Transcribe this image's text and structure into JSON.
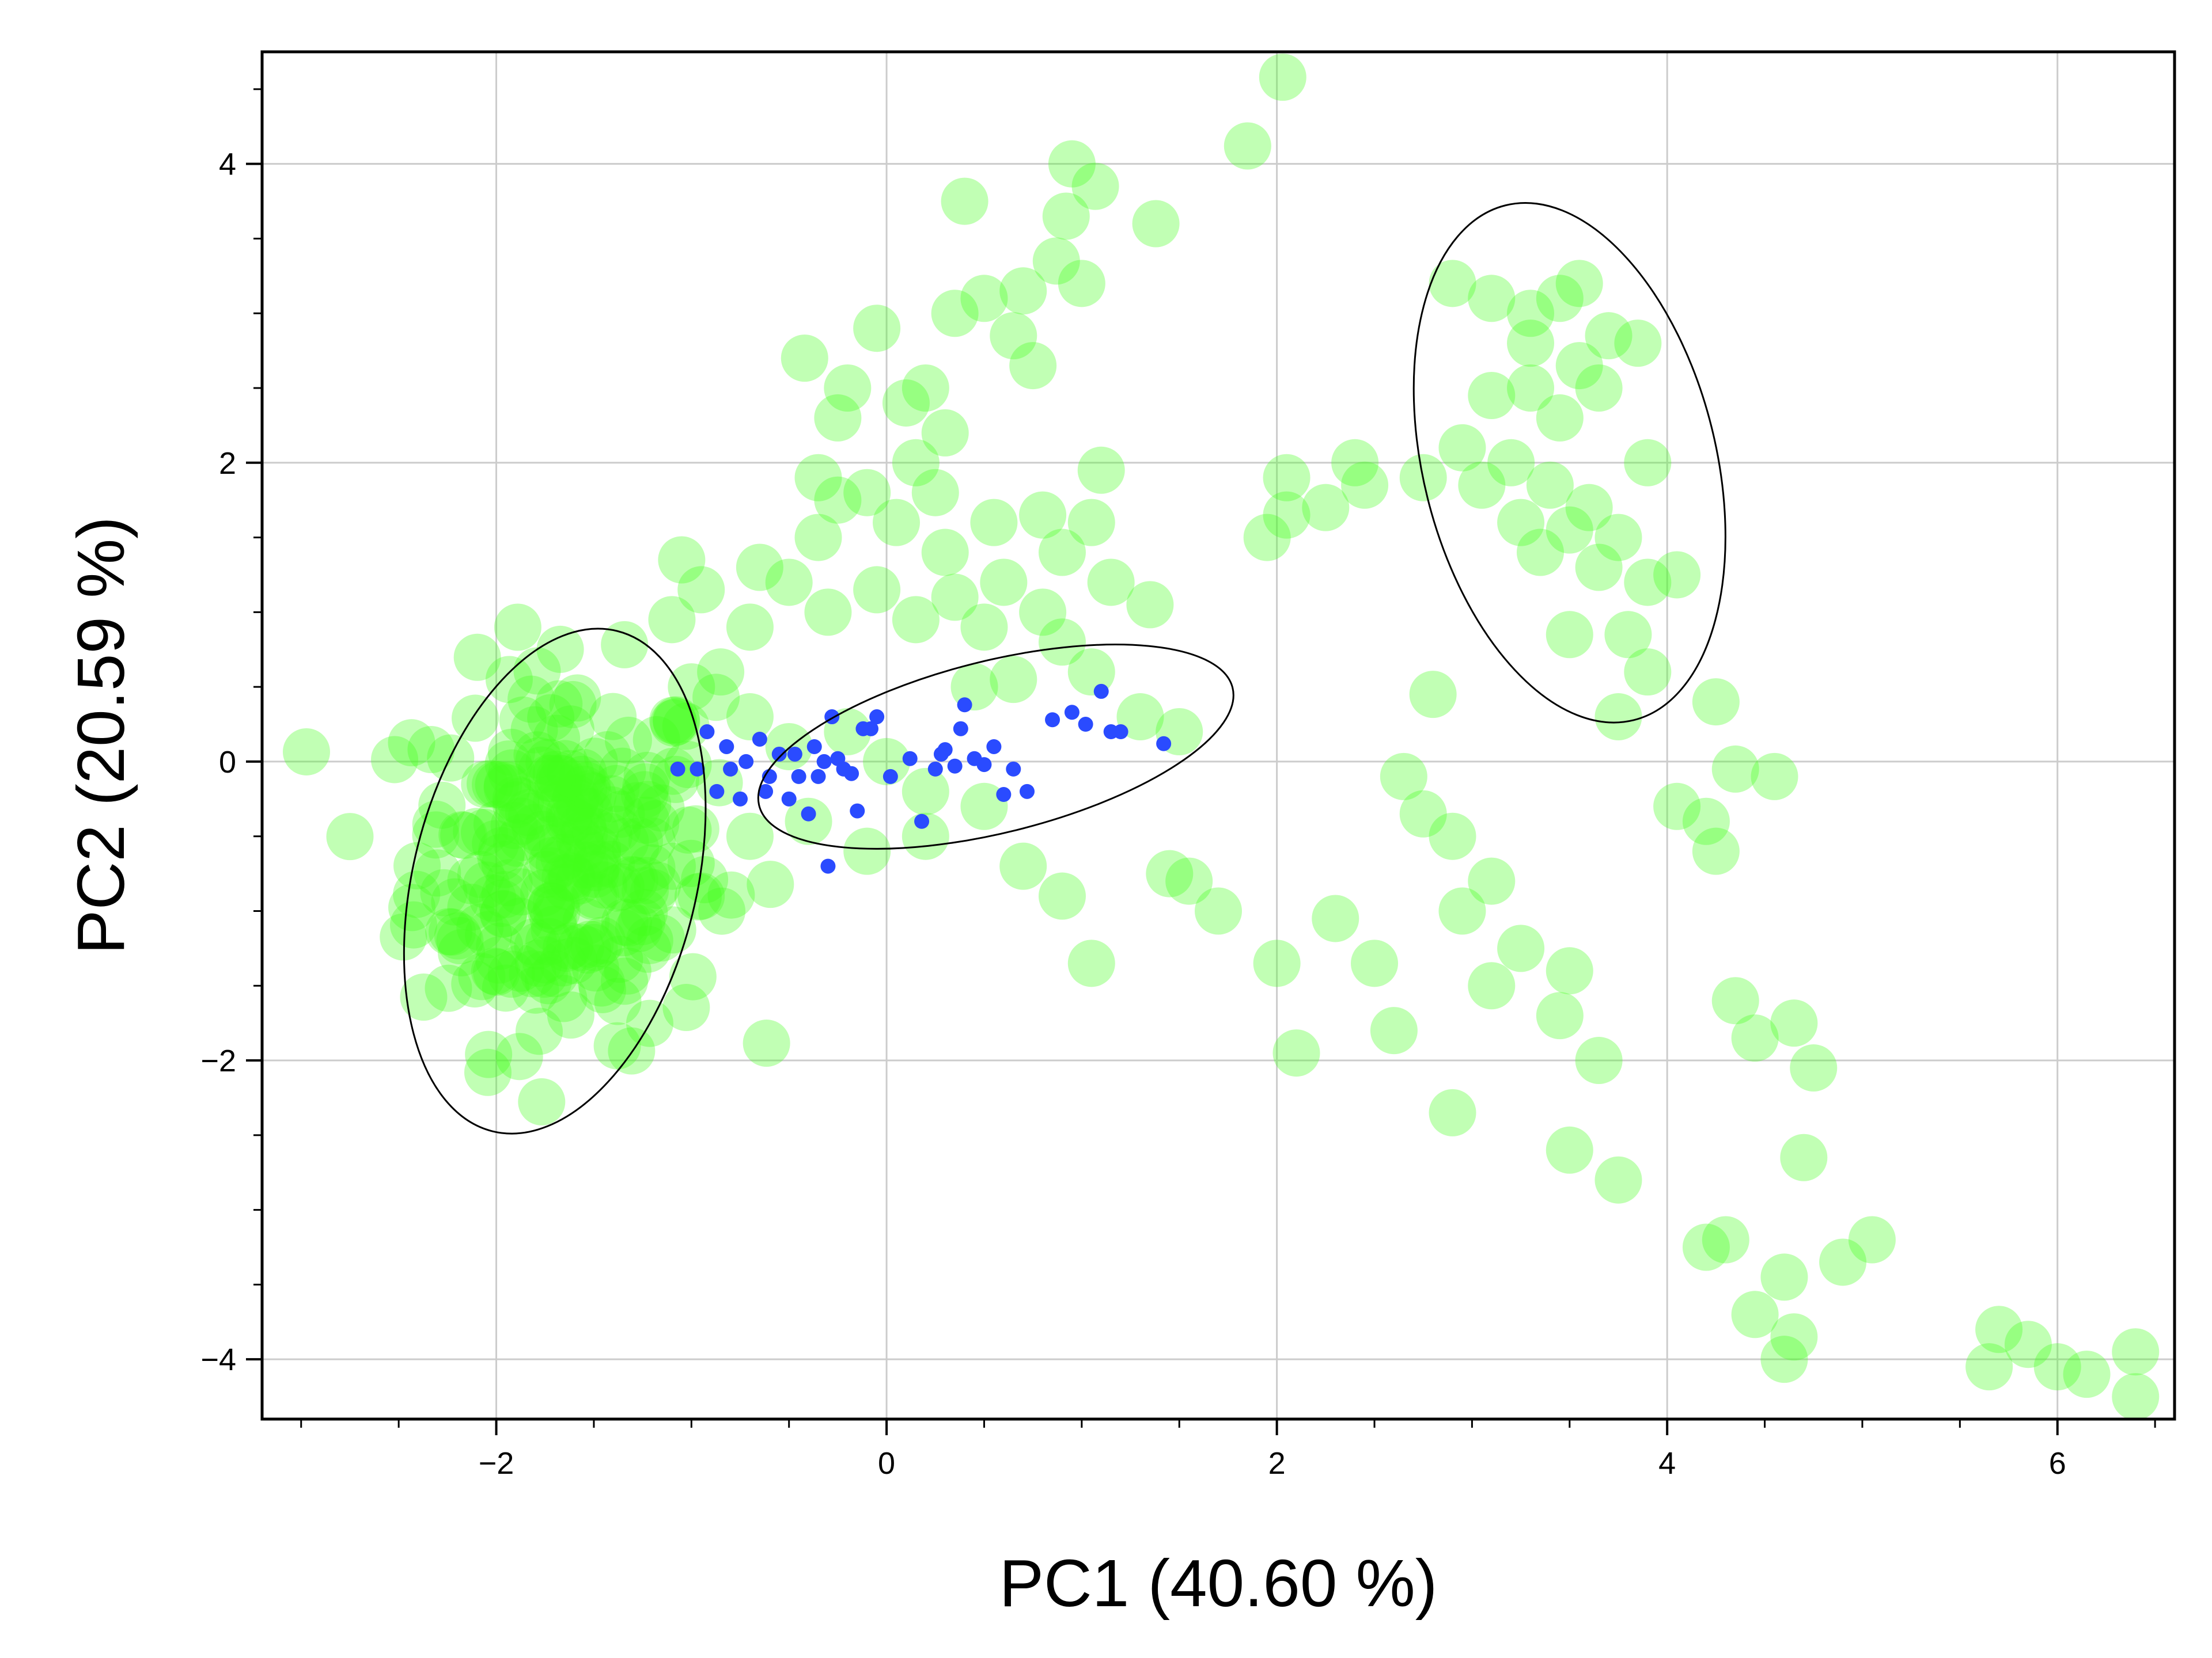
{
  "chart_data": {
    "type": "scatter",
    "title": "",
    "xlabel": "PC1 (40.60 %)",
    "ylabel": "PC2 (20.59 %)",
    "xlim": [
      -3.2,
      6.6
    ],
    "ylim": [
      -4.4,
      4.75
    ],
    "xticks": [
      -2,
      0,
      2,
      4,
      6
    ],
    "yticks": [
      -4,
      -2,
      0,
      2,
      4
    ],
    "tick_labels_x": [
      "−2",
      "0",
      "2",
      "4",
      "6"
    ],
    "tick_labels_y": [
      "−4",
      "−2",
      "0",
      "2",
      "4"
    ],
    "grid": true,
    "legend": "none",
    "colors": {
      "green": "#44ff1a",
      "blue": "#2a4bff",
      "grid": "#cccccc",
      "ellipse": "#000000"
    },
    "series": [
      {
        "color": "#44ff1a",
        "points": [
          [
            2.03,
            4.58
          ],
          [
            1.85,
            4.12
          ],
          [
            0.95,
            4.0
          ],
          [
            1.07,
            3.85
          ],
          [
            1.38,
            3.6
          ],
          [
            0.92,
            3.65
          ],
          [
            0.4,
            3.75
          ],
          [
            0.87,
            3.35
          ],
          [
            1.0,
            3.2
          ],
          [
            0.7,
            3.15
          ],
          [
            0.5,
            3.1
          ],
          [
            0.35,
            3.0
          ],
          [
            0.65,
            2.85
          ],
          [
            0.75,
            2.65
          ],
          [
            -0.42,
            2.7
          ],
          [
            -0.05,
            2.9
          ],
          [
            -0.2,
            2.5
          ],
          [
            -0.25,
            2.3
          ],
          [
            0.1,
            2.4
          ],
          [
            0.2,
            2.5
          ],
          [
            0.3,
            2.2
          ],
          [
            0.15,
            2.0
          ],
          [
            -0.1,
            1.8
          ],
          [
            0.05,
            1.6
          ],
          [
            0.25,
            1.8
          ],
          [
            -0.35,
            1.9
          ],
          [
            -0.25,
            1.75
          ],
          [
            -0.35,
            1.5
          ],
          [
            0.3,
            1.4
          ],
          [
            0.55,
            1.6
          ],
          [
            0.8,
            1.65
          ],
          [
            1.1,
            1.95
          ],
          [
            1.05,
            1.6
          ],
          [
            0.9,
            1.4
          ],
          [
            0.6,
            1.2
          ],
          [
            0.8,
            1.0
          ],
          [
            1.15,
            1.2
          ],
          [
            1.35,
            1.05
          ],
          [
            0.5,
            0.9
          ],
          [
            0.35,
            1.1
          ],
          [
            0.15,
            0.95
          ],
          [
            -0.05,
            1.15
          ],
          [
            -0.3,
            1.0
          ],
          [
            -0.5,
            1.2
          ],
          [
            -0.7,
            0.9
          ],
          [
            -0.65,
            1.3
          ],
          [
            -1.05,
            1.35
          ],
          [
            -0.95,
            1.15
          ],
          [
            -1.1,
            0.95
          ],
          [
            -0.85,
            0.6
          ],
          [
            -1.0,
            0.5
          ],
          [
            -0.7,
            0.3
          ],
          [
            -0.5,
            0.1
          ],
          [
            -0.2,
            0.2
          ],
          [
            0.0,
            0.0
          ],
          [
            0.2,
            -0.2
          ],
          [
            0.45,
            0.5
          ],
          [
            0.65,
            0.55
          ],
          [
            0.9,
            0.8
          ],
          [
            1.05,
            0.6
          ],
          [
            1.3,
            0.3
          ],
          [
            1.5,
            0.2
          ],
          [
            0.5,
            -0.3
          ],
          [
            0.2,
            -0.5
          ],
          [
            -0.1,
            -0.6
          ],
          [
            -0.4,
            -0.4
          ],
          [
            -0.7,
            -0.5
          ],
          [
            -0.95,
            -0.9
          ],
          [
            0.9,
            -0.9
          ],
          [
            1.05,
            -1.35
          ],
          [
            0.7,
            -0.7
          ],
          [
            1.45,
            -0.75
          ],
          [
            1.7,
            -1.0
          ],
          [
            1.55,
            -0.8
          ],
          [
            1.95,
            1.5
          ],
          [
            2.05,
            1.9
          ],
          [
            2.25,
            1.7
          ],
          [
            2.45,
            1.85
          ],
          [
            2.4,
            2.0
          ],
          [
            2.75,
            1.9
          ],
          [
            2.05,
            1.65
          ],
          [
            2.9,
            3.2
          ],
          [
            3.1,
            3.1
          ],
          [
            3.3,
            3.0
          ],
          [
            3.45,
            3.1
          ],
          [
            3.55,
            3.2
          ],
          [
            3.3,
            2.8
          ],
          [
            3.55,
            2.65
          ],
          [
            3.7,
            2.85
          ],
          [
            3.85,
            2.8
          ],
          [
            3.1,
            2.45
          ],
          [
            3.3,
            2.5
          ],
          [
            3.45,
            2.3
          ],
          [
            3.65,
            2.5
          ],
          [
            2.95,
            2.1
          ],
          [
            3.2,
            2.0
          ],
          [
            3.4,
            1.85
          ],
          [
            3.6,
            1.7
          ],
          [
            3.9,
            2.0
          ],
          [
            3.05,
            1.85
          ],
          [
            3.25,
            1.6
          ],
          [
            3.5,
            1.55
          ],
          [
            3.75,
            1.5
          ],
          [
            3.35,
            1.4
          ],
          [
            3.65,
            1.3
          ],
          [
            3.9,
            1.2
          ],
          [
            4.05,
            1.25
          ],
          [
            3.5,
            0.85
          ],
          [
            3.8,
            0.85
          ],
          [
            3.9,
            0.6
          ],
          [
            3.75,
            0.3
          ],
          [
            4.25,
            0.4
          ],
          [
            4.35,
            -0.05
          ],
          [
            4.55,
            -0.1
          ],
          [
            4.05,
            -0.3
          ],
          [
            4.2,
            -0.4
          ],
          [
            4.25,
            -0.6
          ],
          [
            2.8,
            0.45
          ],
          [
            2.65,
            -0.1
          ],
          [
            2.75,
            -0.35
          ],
          [
            2.9,
            -0.5
          ],
          [
            3.1,
            -0.8
          ],
          [
            2.95,
            -1.0
          ],
          [
            3.25,
            -1.25
          ],
          [
            3.1,
            -1.5
          ],
          [
            3.5,
            -1.4
          ],
          [
            3.45,
            -1.7
          ],
          [
            3.65,
            -2.0
          ],
          [
            2.5,
            -1.35
          ],
          [
            2.3,
            -1.05
          ],
          [
            2.6,
            -1.8
          ],
          [
            2.1,
            -1.95
          ],
          [
            2.0,
            -1.35
          ],
          [
            2.9,
            -2.35
          ],
          [
            3.5,
            -2.6
          ],
          [
            3.75,
            -2.8
          ],
          [
            4.35,
            -1.6
          ],
          [
            4.65,
            -1.75
          ],
          [
            4.45,
            -1.85
          ],
          [
            4.75,
            -2.05
          ],
          [
            4.7,
            -2.65
          ],
          [
            4.2,
            -3.25
          ],
          [
            4.3,
            -3.2
          ],
          [
            4.45,
            -3.7
          ],
          [
            4.6,
            -3.45
          ],
          [
            4.65,
            -3.85
          ],
          [
            4.9,
            -3.35
          ],
          [
            5.05,
            -3.2
          ],
          [
            4.6,
            -4.0
          ],
          [
            5.7,
            -3.8
          ],
          [
            5.85,
            -3.9
          ],
          [
            5.65,
            -4.05
          ],
          [
            6.0,
            -4.05
          ],
          [
            6.15,
            -4.1
          ],
          [
            6.4,
            -3.95
          ],
          [
            6.4,
            -4.25
          ]
        ]
      },
      {
        "color": "#44ff1a",
        "cluster": {
          "center": [
            -1.65,
            -0.65
          ],
          "spread": [
            0.38,
            0.62
          ],
          "count": 260
        }
      },
      {
        "color": "#2a4bff",
        "points": [
          [
            -1.07,
            -0.05
          ],
          [
            -0.97,
            -0.05
          ],
          [
            -0.92,
            0.2
          ],
          [
            -0.87,
            -0.2
          ],
          [
            -0.82,
            0.1
          ],
          [
            -0.8,
            -0.05
          ],
          [
            -0.75,
            -0.25
          ],
          [
            -0.72,
            0.0
          ],
          [
            -0.65,
            0.15
          ],
          [
            -0.62,
            -0.2
          ],
          [
            -0.6,
            -0.1
          ],
          [
            -0.55,
            0.05
          ],
          [
            -0.5,
            -0.25
          ],
          [
            -0.47,
            0.05
          ],
          [
            -0.45,
            -0.1
          ],
          [
            -0.4,
            -0.35
          ],
          [
            -0.37,
            0.1
          ],
          [
            -0.35,
            -0.1
          ],
          [
            -0.32,
            0.0
          ],
          [
            -0.3,
            -0.7
          ],
          [
            -0.28,
            0.3
          ],
          [
            -0.25,
            0.02
          ],
          [
            -0.22,
            -0.05
          ],
          [
            -0.18,
            -0.08
          ],
          [
            -0.15,
            -0.33
          ],
          [
            -0.12,
            0.22
          ],
          [
            -0.08,
            0.22
          ],
          [
            -0.05,
            0.3
          ],
          [
            0.02,
            -0.1
          ],
          [
            0.12,
            0.02
          ],
          [
            0.18,
            -0.4
          ],
          [
            0.25,
            -0.05
          ],
          [
            0.28,
            0.05
          ],
          [
            0.3,
            0.08
          ],
          [
            0.35,
            -0.03
          ],
          [
            0.38,
            0.22
          ],
          [
            0.4,
            0.38
          ],
          [
            0.45,
            0.02
          ],
          [
            0.5,
            -0.02
          ],
          [
            0.55,
            0.1
          ],
          [
            0.6,
            -0.22
          ],
          [
            0.65,
            -0.05
          ],
          [
            0.72,
            -0.2
          ],
          [
            0.85,
            0.28
          ],
          [
            0.95,
            0.33
          ],
          [
            1.02,
            0.25
          ],
          [
            1.1,
            0.47
          ],
          [
            1.15,
            0.2
          ],
          [
            1.2,
            0.2
          ],
          [
            1.42,
            0.12
          ]
        ]
      }
    ],
    "ellipses": [
      {
        "center": [
          -1.7,
          -0.8
        ],
        "width": 1.45,
        "height": 3.45,
        "angle_deg": -14
      },
      {
        "center": [
          0.56,
          0.1
        ],
        "width": 2.5,
        "height": 1.15,
        "angle_deg": 14
      },
      {
        "center": [
          3.5,
          2.0
        ],
        "width": 1.5,
        "height": 3.55,
        "angle_deg": 14
      }
    ]
  }
}
